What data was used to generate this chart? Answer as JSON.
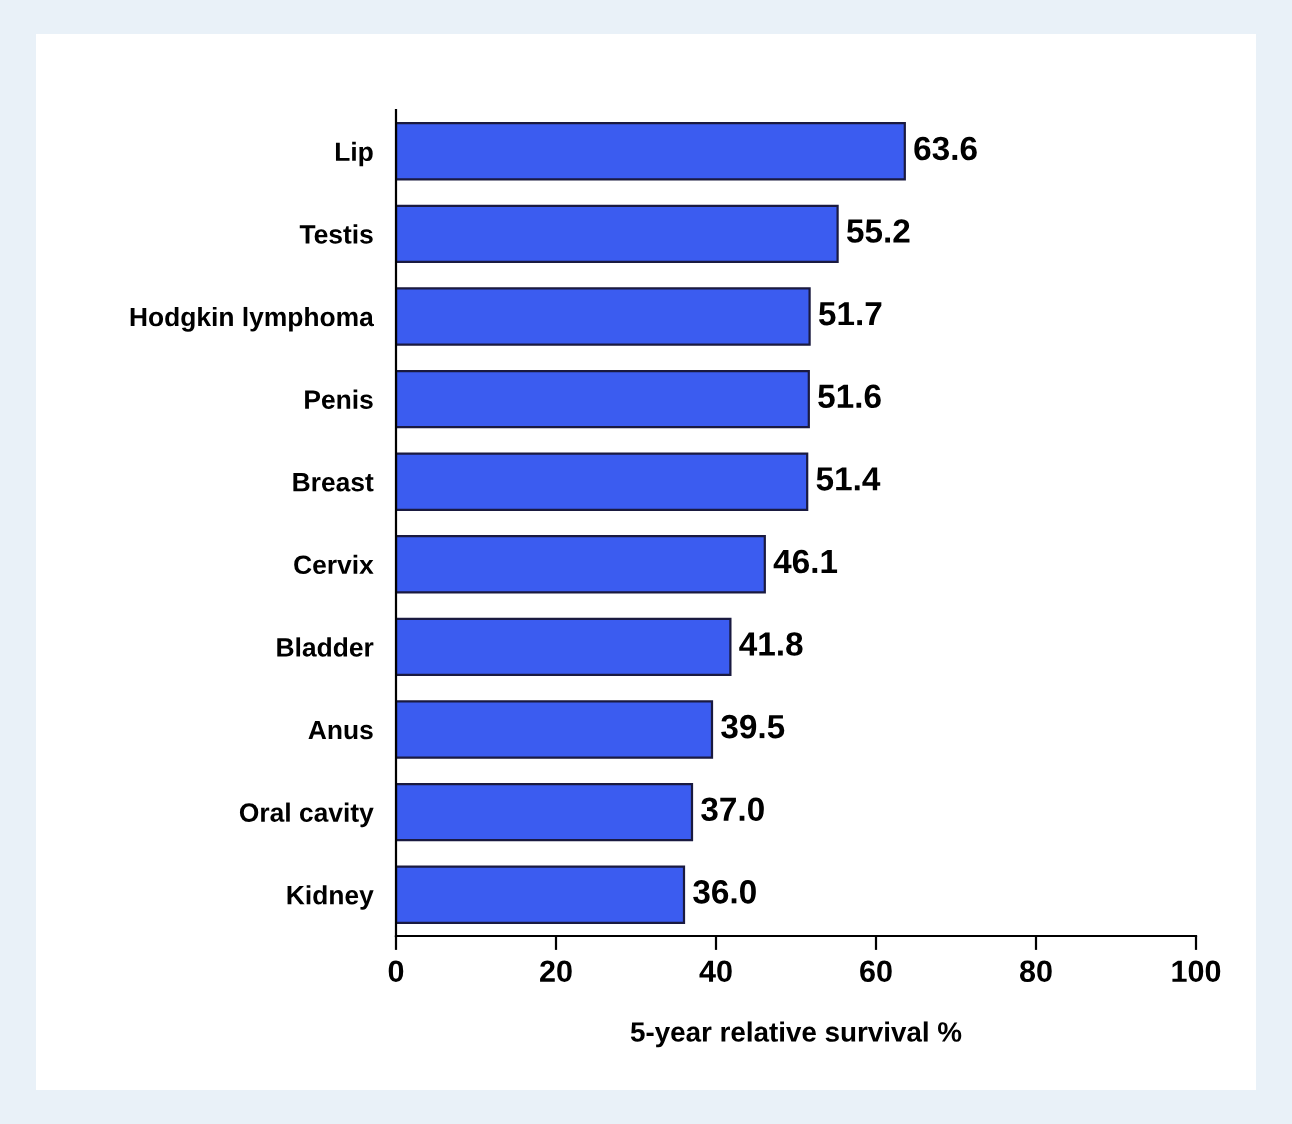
{
  "chart_data": {
    "type": "bar",
    "orientation": "horizontal",
    "xlabel": "5-year relative survival %",
    "categories": [
      "Lip",
      "Testis",
      "Hodgkin lymphoma",
      "Penis",
      "Breast",
      "Cervix",
      "Bladder",
      "Anus",
      "Oral cavity",
      "Kidney"
    ],
    "values": [
      63.6,
      55.2,
      51.7,
      51.6,
      51.4,
      46.1,
      41.8,
      39.5,
      37.0,
      36.0
    ],
    "value_labels": [
      "63.6",
      "55.2",
      "51.7",
      "51.6",
      "51.4",
      "46.1",
      "41.8",
      "39.5",
      "37.0",
      "36.0"
    ],
    "color": "#3b5cf0",
    "xlim": [
      0,
      100
    ],
    "xticks": [
      0,
      20,
      40,
      60,
      80,
      100
    ],
    "grid": false,
    "legend": false
  }
}
